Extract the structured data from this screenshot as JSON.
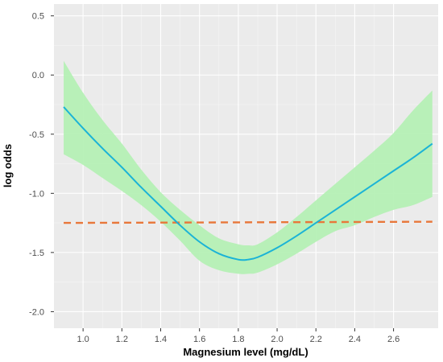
{
  "chart_data": {
    "type": "line",
    "title": "",
    "xlabel": "Magnesium level (mg/dL)",
    "ylabel": "log odds",
    "xlim": [
      0.85,
      2.83
    ],
    "ylim": [
      -2.14,
      0.6
    ],
    "x_ticks": [
      1.0,
      1.2,
      1.4,
      1.6,
      1.8,
      2.0,
      2.2,
      2.4,
      2.6
    ],
    "x_tick_labels": [
      "1.0",
      "1.2",
      "1.4",
      "1.6",
      "1.8",
      "2.0",
      "2.2",
      "2.4",
      "2.6"
    ],
    "y_ticks": [
      0.5,
      0.0,
      -0.5,
      -1.0,
      -1.5,
      -2.0
    ],
    "y_tick_labels": [
      "0.5",
      "0.0",
      "-0.5",
      "-1.0",
      "-1.5",
      "-2.0"
    ],
    "grid": true,
    "legend": "none",
    "colors": {
      "panel": "#ebebeb",
      "grid_major": "#ffffff",
      "grid_minor": "#f5f5f5",
      "fit_line": "#1bb3d6",
      "ribbon": "#b5f0b5",
      "reference_line": "#e8773a"
    },
    "series": [
      {
        "role": "fitted-curve",
        "x": [
          0.9,
          1.0,
          1.1,
          1.2,
          1.3,
          1.4,
          1.5,
          1.6,
          1.7,
          1.8,
          1.85,
          1.9,
          2.0,
          2.1,
          2.2,
          2.3,
          2.4,
          2.5,
          2.6,
          2.7,
          2.8
        ],
        "y": [
          -0.27,
          -0.45,
          -0.62,
          -0.78,
          -0.95,
          -1.11,
          -1.27,
          -1.41,
          -1.51,
          -1.56,
          -1.56,
          -1.54,
          -1.46,
          -1.36,
          -1.25,
          -1.14,
          -1.03,
          -0.92,
          -0.81,
          -0.7,
          -0.58
        ]
      },
      {
        "role": "confidence-band",
        "x": [
          0.9,
          1.0,
          1.1,
          1.2,
          1.3,
          1.4,
          1.5,
          1.6,
          1.7,
          1.8,
          1.85,
          1.9,
          2.0,
          2.1,
          2.2,
          2.3,
          2.4,
          2.5,
          2.6,
          2.7,
          2.8
        ],
        "lower": [
          -0.67,
          -0.76,
          -0.87,
          -0.98,
          -1.1,
          -1.24,
          -1.4,
          -1.57,
          -1.65,
          -1.68,
          -1.68,
          -1.67,
          -1.6,
          -1.51,
          -1.41,
          -1.32,
          -1.27,
          -1.2,
          -1.14,
          -1.1,
          -1.03
        ],
        "upper": [
          0.12,
          -0.15,
          -0.38,
          -0.58,
          -0.8,
          -0.99,
          -1.14,
          -1.27,
          -1.38,
          -1.43,
          -1.44,
          -1.43,
          -1.33,
          -1.2,
          -1.06,
          -0.92,
          -0.78,
          -0.64,
          -0.49,
          -0.3,
          -0.13
        ]
      },
      {
        "role": "reference-line",
        "dashed": true,
        "x": [
          0.9,
          2.8
        ],
        "y": [
          -1.25,
          -1.24
        ]
      }
    ]
  }
}
